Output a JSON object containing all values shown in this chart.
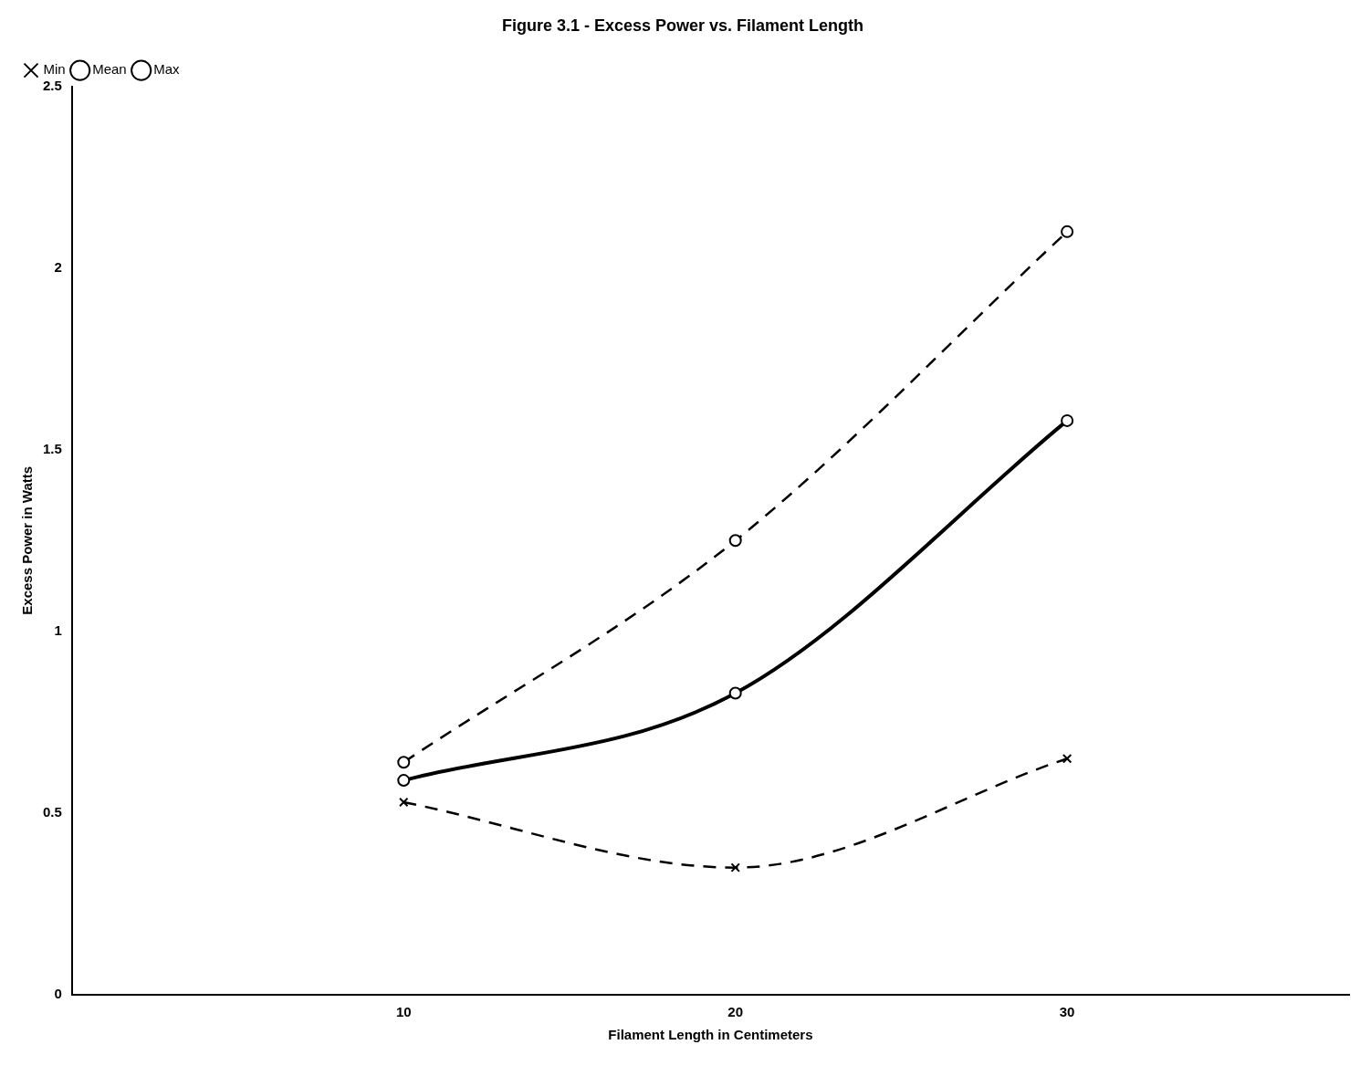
{
  "chart_data": {
    "type": "line",
    "title": "Figure 3.1 - Excess Power vs. Filament Length",
    "xlabel": "Filament Length in Centimeters",
    "ylabel": "Excess Power in Watts",
    "x": [
      10,
      20,
      30
    ],
    "series": [
      {
        "name": "Min",
        "color": "#000000",
        "values": [
          0.53,
          0.35,
          0.65
        ],
        "marker": "cross",
        "line_style": "dashed"
      },
      {
        "name": "Mean",
        "color": "#000000",
        "values": [
          0.59,
          0.83,
          1.58
        ],
        "marker": "circle",
        "line_style": "solid"
      },
      {
        "name": "Max",
        "color": "#000000",
        "values": [
          0.64,
          1.25,
          2.1
        ],
        "marker": "circle",
        "line_style": "dashed"
      }
    ],
    "xlim": [
      0,
      38.5
    ],
    "xticks": [
      10,
      20,
      30
    ],
    "ylim": [
      0,
      2.5
    ],
    "yticks": [
      0,
      0.5,
      1,
      1.5,
      2,
      2.5
    ],
    "grid": false,
    "legend": "top left"
  }
}
